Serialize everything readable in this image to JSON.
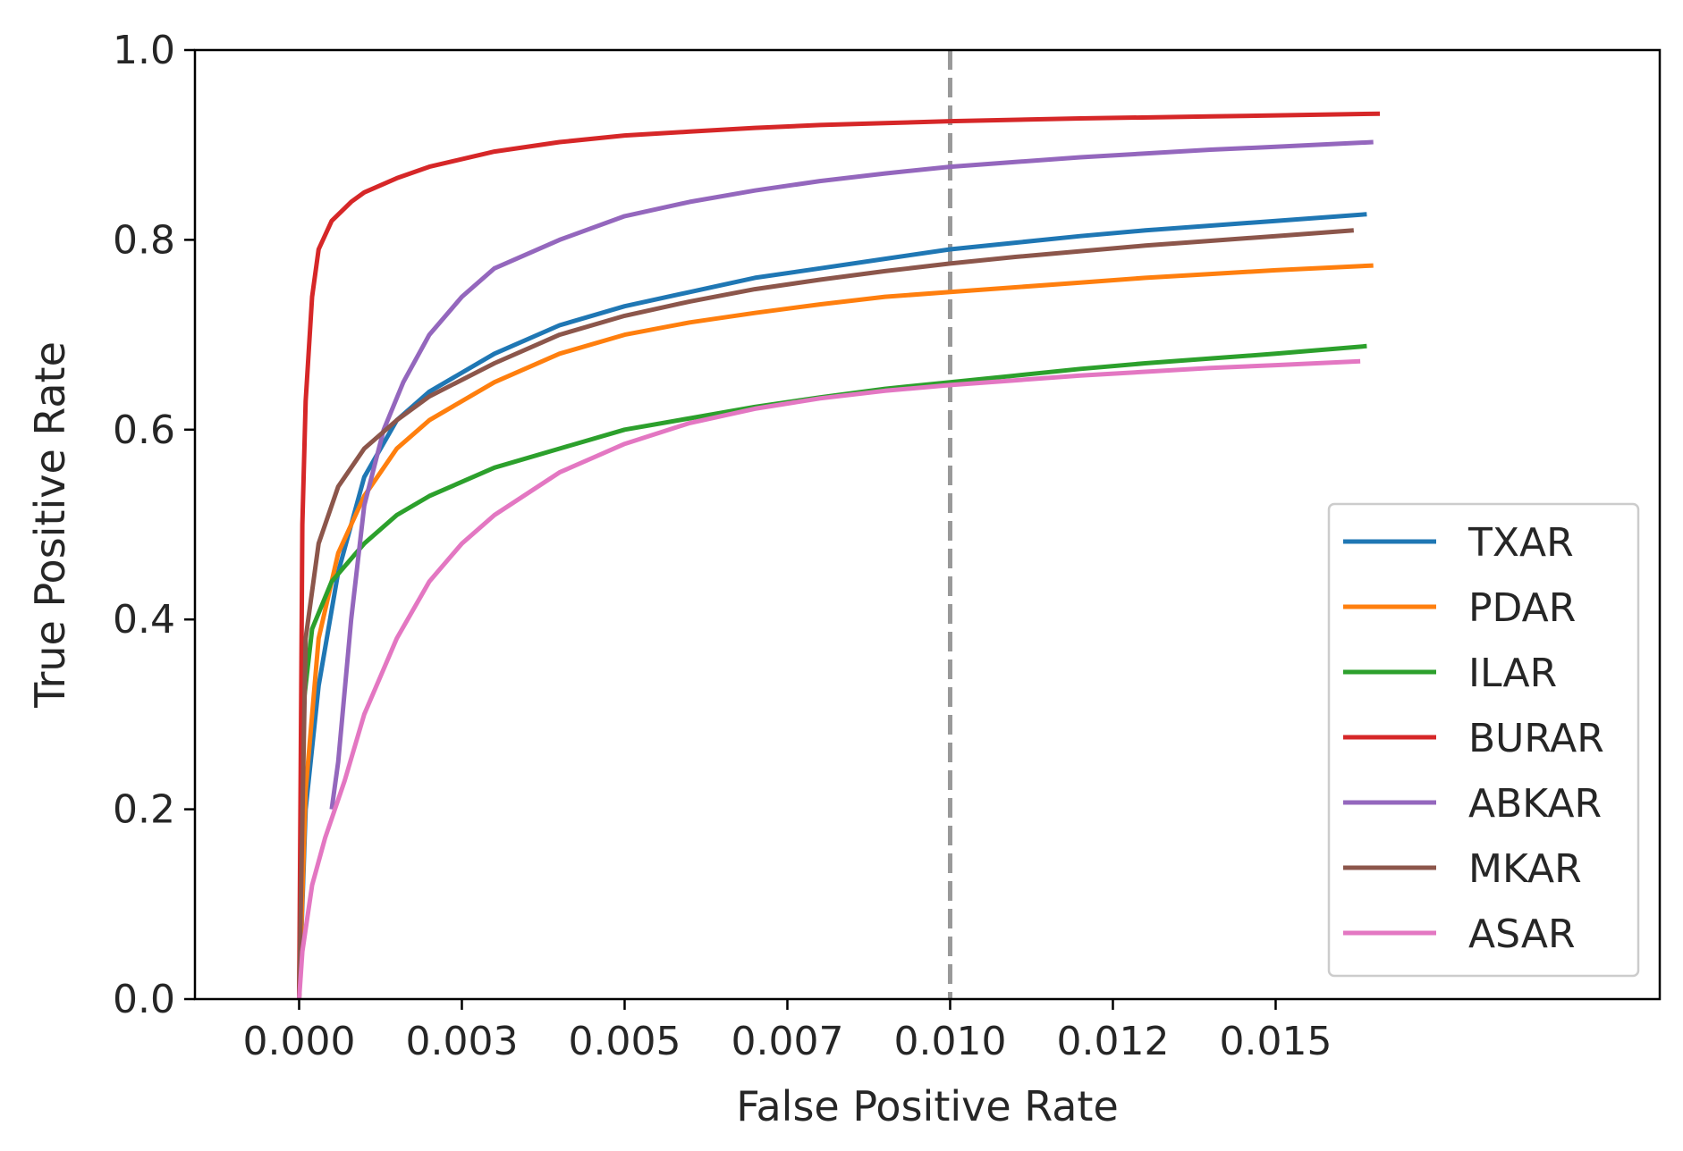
{
  "chart_data": {
    "type": "line",
    "title": "",
    "xlabel": "False Positive Rate",
    "ylabel": "True Positive Rate",
    "xlim": [
      -0.0016,
      0.0209
    ],
    "ylim": [
      0.0,
      1.0
    ],
    "xticks": [
      {
        "value": 0.0,
        "label": "0.000"
      },
      {
        "value": 0.0025,
        "label": "0.003"
      },
      {
        "value": 0.005,
        "label": "0.005"
      },
      {
        "value": 0.0075,
        "label": "0.007"
      },
      {
        "value": 0.01,
        "label": "0.010"
      },
      {
        "value": 0.0125,
        "label": "0.012"
      },
      {
        "value": 0.015,
        "label": "0.015"
      }
    ],
    "yticks": [
      {
        "value": 0.0,
        "label": "0.0"
      },
      {
        "value": 0.2,
        "label": "0.2"
      },
      {
        "value": 0.4,
        "label": "0.4"
      },
      {
        "value": 0.6,
        "label": "0.6"
      },
      {
        "value": 0.8,
        "label": "0.8"
      },
      {
        "value": 1.0,
        "label": "1.0"
      }
    ],
    "grid": false,
    "legend_position": "lower-right",
    "reference_line": {
      "x": 0.01,
      "style": "dashed",
      "color": "#999999"
    },
    "series": [
      {
        "name": "TXAR",
        "color": "#1f77b4",
        "x": [
          0.0,
          0.0001,
          0.0003,
          0.0006,
          0.001,
          0.0015,
          0.002,
          0.003,
          0.004,
          0.005,
          0.006,
          0.007,
          0.008,
          0.009,
          0.01,
          0.011,
          0.012,
          0.013,
          0.014,
          0.015,
          0.0164
        ],
        "y": [
          0.0,
          0.2,
          0.33,
          0.45,
          0.55,
          0.61,
          0.64,
          0.68,
          0.71,
          0.73,
          0.745,
          0.76,
          0.77,
          0.78,
          0.79,
          0.797,
          0.804,
          0.81,
          0.815,
          0.82,
          0.827
        ]
      },
      {
        "name": "PDAR",
        "color": "#ff7f0e",
        "x": [
          0.0,
          0.0001,
          0.0003,
          0.0006,
          0.001,
          0.0015,
          0.002,
          0.003,
          0.004,
          0.005,
          0.006,
          0.007,
          0.008,
          0.009,
          0.01,
          0.011,
          0.012,
          0.013,
          0.014,
          0.015,
          0.0165
        ],
        "y": [
          0.0,
          0.22,
          0.38,
          0.47,
          0.53,
          0.58,
          0.61,
          0.65,
          0.68,
          0.7,
          0.713,
          0.723,
          0.732,
          0.74,
          0.745,
          0.75,
          0.755,
          0.76,
          0.764,
          0.768,
          0.773
        ]
      },
      {
        "name": "ILAR",
        "color": "#2ca02c",
        "x": [
          0.0,
          5e-05,
          0.0002,
          0.0005,
          0.001,
          0.0015,
          0.002,
          0.003,
          0.004,
          0.005,
          0.006,
          0.007,
          0.008,
          0.009,
          0.01,
          0.011,
          0.012,
          0.013,
          0.014,
          0.015,
          0.0164
        ],
        "y": [
          0.0,
          0.3,
          0.39,
          0.44,
          0.48,
          0.51,
          0.53,
          0.56,
          0.58,
          0.6,
          0.612,
          0.624,
          0.634,
          0.643,
          0.65,
          0.657,
          0.664,
          0.67,
          0.675,
          0.68,
          0.688
        ]
      },
      {
        "name": "BURAR",
        "color": "#d62728",
        "x": [
          0.0,
          5e-05,
          0.0001,
          0.0002,
          0.0003,
          0.0005,
          0.0008,
          0.001,
          0.0015,
          0.002,
          0.003,
          0.004,
          0.005,
          0.006,
          0.007,
          0.008,
          0.009,
          0.01,
          0.012,
          0.014,
          0.0166
        ],
        "y": [
          0.0,
          0.5,
          0.63,
          0.74,
          0.79,
          0.82,
          0.84,
          0.85,
          0.865,
          0.877,
          0.893,
          0.903,
          0.91,
          0.914,
          0.918,
          0.921,
          0.923,
          0.925,
          0.928,
          0.93,
          0.933
        ]
      },
      {
        "name": "ABKAR",
        "color": "#9467bd",
        "x": [
          0.0005,
          0.0006,
          0.0008,
          0.001,
          0.0013,
          0.0016,
          0.002,
          0.0025,
          0.003,
          0.004,
          0.005,
          0.006,
          0.007,
          0.008,
          0.009,
          0.01,
          0.011,
          0.012,
          0.013,
          0.014,
          0.015,
          0.0165
        ],
        "y": [
          0.2,
          0.25,
          0.4,
          0.52,
          0.6,
          0.65,
          0.7,
          0.74,
          0.77,
          0.8,
          0.825,
          0.84,
          0.852,
          0.862,
          0.87,
          0.877,
          0.882,
          0.887,
          0.891,
          0.895,
          0.898,
          0.903
        ]
      },
      {
        "name": "MKAR",
        "color": "#8c564b",
        "x": [
          0.0,
          0.0001,
          0.0003,
          0.0006,
          0.001,
          0.0015,
          0.002,
          0.003,
          0.004,
          0.005,
          0.006,
          0.007,
          0.008,
          0.009,
          0.01,
          0.011,
          0.012,
          0.013,
          0.014,
          0.015,
          0.0162
        ],
        "y": [
          0.0,
          0.38,
          0.48,
          0.54,
          0.58,
          0.61,
          0.635,
          0.67,
          0.7,
          0.72,
          0.735,
          0.748,
          0.758,
          0.767,
          0.775,
          0.782,
          0.788,
          0.794,
          0.799,
          0.804,
          0.81
        ]
      },
      {
        "name": "ASAR",
        "color": "#e377c2",
        "x": [
          0.0,
          5e-05,
          0.0002,
          0.0004,
          0.0007,
          0.001,
          0.0015,
          0.002,
          0.0025,
          0.003,
          0.004,
          0.005,
          0.006,
          0.007,
          0.008,
          0.009,
          0.01,
          0.011,
          0.012,
          0.013,
          0.014,
          0.015,
          0.0163
        ],
        "y": [
          0.0,
          0.05,
          0.12,
          0.17,
          0.23,
          0.3,
          0.38,
          0.44,
          0.48,
          0.51,
          0.555,
          0.585,
          0.607,
          0.622,
          0.633,
          0.641,
          0.647,
          0.652,
          0.657,
          0.661,
          0.665,
          0.668,
          0.672
        ]
      }
    ]
  }
}
